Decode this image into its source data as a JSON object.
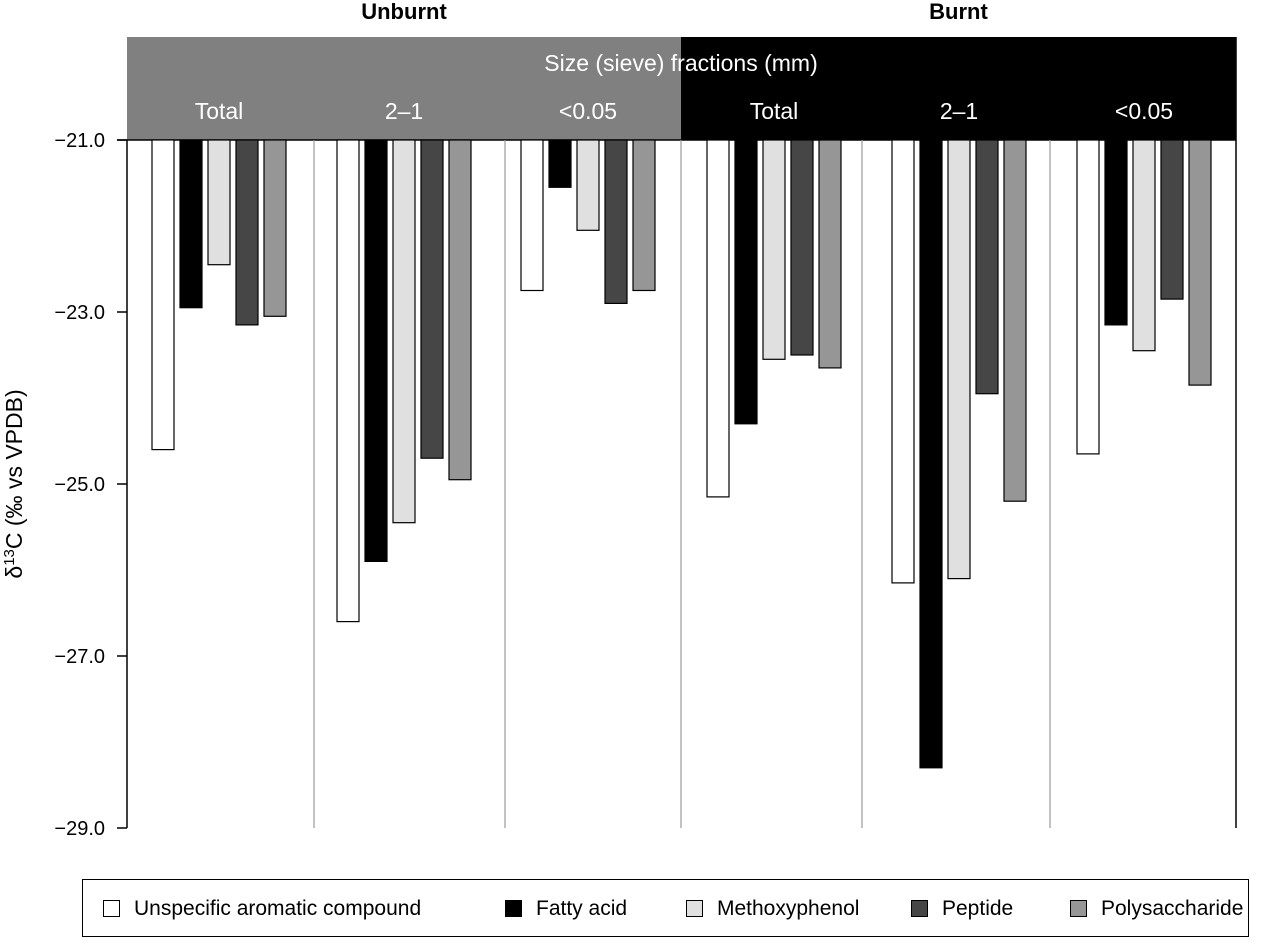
{
  "chart_data": {
    "type": "bar",
    "title": "",
    "top_labels": [
      "Unburnt",
      "Burnt"
    ],
    "header_label": "Size (sieve) fractions (mm)",
    "header_colors": [
      "#808080",
      "#000000"
    ],
    "categories": [
      "Total",
      "2–1",
      "<0.05",
      "Total",
      "2–1",
      "<0.05"
    ],
    "ylabel_parts": {
      "delta": "δ",
      "sup": "13",
      "rest": "C (‰ vs VPDB)"
    },
    "ylim": [
      -29.0,
      -21.0
    ],
    "yticks": [
      "-21.0",
      "-23.0",
      "-25.0",
      "-27.0",
      "-29.0"
    ],
    "ytick_labels": [
      "−21.0",
      "−23.0",
      "−25.0",
      "−27.0",
      "−29.0"
    ],
    "grid": false,
    "legend_position": "bottom",
    "series": [
      {
        "name": "Unspecific aromatic compound",
        "color": "#ffffff",
        "values": [
          -24.6,
          -26.6,
          -22.75,
          -25.15,
          -26.15,
          -24.65
        ]
      },
      {
        "name": "Fatty acid",
        "color": "#000000",
        "values": [
          -22.95,
          -25.9,
          -21.55,
          -24.3,
          -28.3,
          -23.15
        ]
      },
      {
        "name": "Methoxyphenol",
        "color": "#e0e0e0",
        "values": [
          -22.45,
          -25.45,
          -22.05,
          -23.55,
          -26.1,
          -23.45
        ]
      },
      {
        "name": "Peptide",
        "color": "#464646",
        "values": [
          -23.15,
          -24.7,
          -22.9,
          -23.5,
          -23.95,
          -22.85
        ]
      },
      {
        "name": "Polysaccharide",
        "color": "#969696",
        "values": [
          -23.05,
          -24.95,
          -22.75,
          -23.65,
          -25.2,
          -23.85
        ]
      }
    ]
  }
}
